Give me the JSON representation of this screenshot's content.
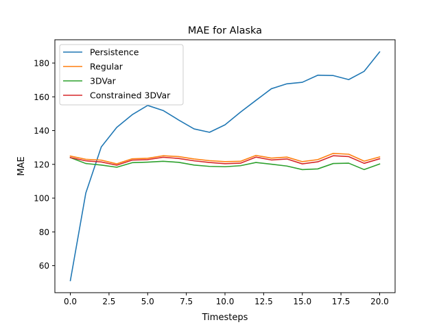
{
  "chart_data": {
    "type": "line",
    "title": "MAE for Alaska",
    "xlabel": "Timesteps",
    "ylabel": "MAE",
    "xlim": [
      -1.0,
      21.0
    ],
    "ylim": [
      44.0,
      193.8
    ],
    "xticks": [
      0.0,
      2.5,
      5.0,
      7.5,
      10.0,
      12.5,
      15.0,
      17.5,
      20.0
    ],
    "xtick_labels": [
      "0.0",
      "2.5",
      "5.0",
      "7.5",
      "10.0",
      "12.5",
      "15.0",
      "17.5",
      "20.0"
    ],
    "yticks": [
      60,
      80,
      100,
      120,
      140,
      160,
      180
    ],
    "ytick_labels": [
      "60",
      "80",
      "100",
      "120",
      "140",
      "160",
      "180"
    ],
    "grid": false,
    "legend_position": "top-left",
    "x": [
      0,
      1,
      2,
      3,
      4,
      5,
      6,
      7,
      8,
      9,
      10,
      11,
      12,
      13,
      14,
      15,
      16,
      17,
      18,
      19,
      20
    ],
    "series": [
      {
        "name": "Persistence",
        "color": "#1f77b4",
        "values": [
          51.1,
          103.0,
          130.3,
          141.9,
          149.4,
          154.9,
          151.9,
          146.3,
          141.0,
          139.0,
          143.4,
          150.9,
          157.9,
          164.8,
          167.7,
          168.6,
          172.8,
          172.6,
          170.2,
          175.1,
          186.6
        ]
      },
      {
        "name": "Regular",
        "color": "#ff7f0e",
        "values": [
          124.9,
          123.0,
          122.5,
          120.3,
          123.3,
          123.6,
          125.1,
          124.6,
          123.2,
          122.2,
          121.6,
          121.8,
          125.3,
          123.7,
          124.3,
          121.6,
          122.8,
          126.5,
          126.0,
          121.9,
          124.4
        ]
      },
      {
        "name": "3DVar",
        "color": "#2ca02c",
        "values": [
          124.0,
          120.5,
          119.6,
          118.3,
          121.0,
          121.3,
          121.8,
          121.2,
          119.6,
          118.8,
          118.6,
          119.2,
          121.1,
          120.1,
          119.0,
          116.9,
          117.3,
          120.5,
          120.7,
          116.9,
          120.2
        ]
      },
      {
        "name": "Constrained 3DVar",
        "color": "#d62728",
        "values": [
          124.0,
          122.1,
          121.4,
          119.5,
          122.5,
          122.8,
          124.2,
          123.5,
          122.1,
          121.1,
          120.4,
          120.7,
          124.3,
          122.6,
          123.2,
          120.3,
          121.5,
          125.1,
          124.6,
          120.6,
          123.3
        ]
      }
    ]
  }
}
